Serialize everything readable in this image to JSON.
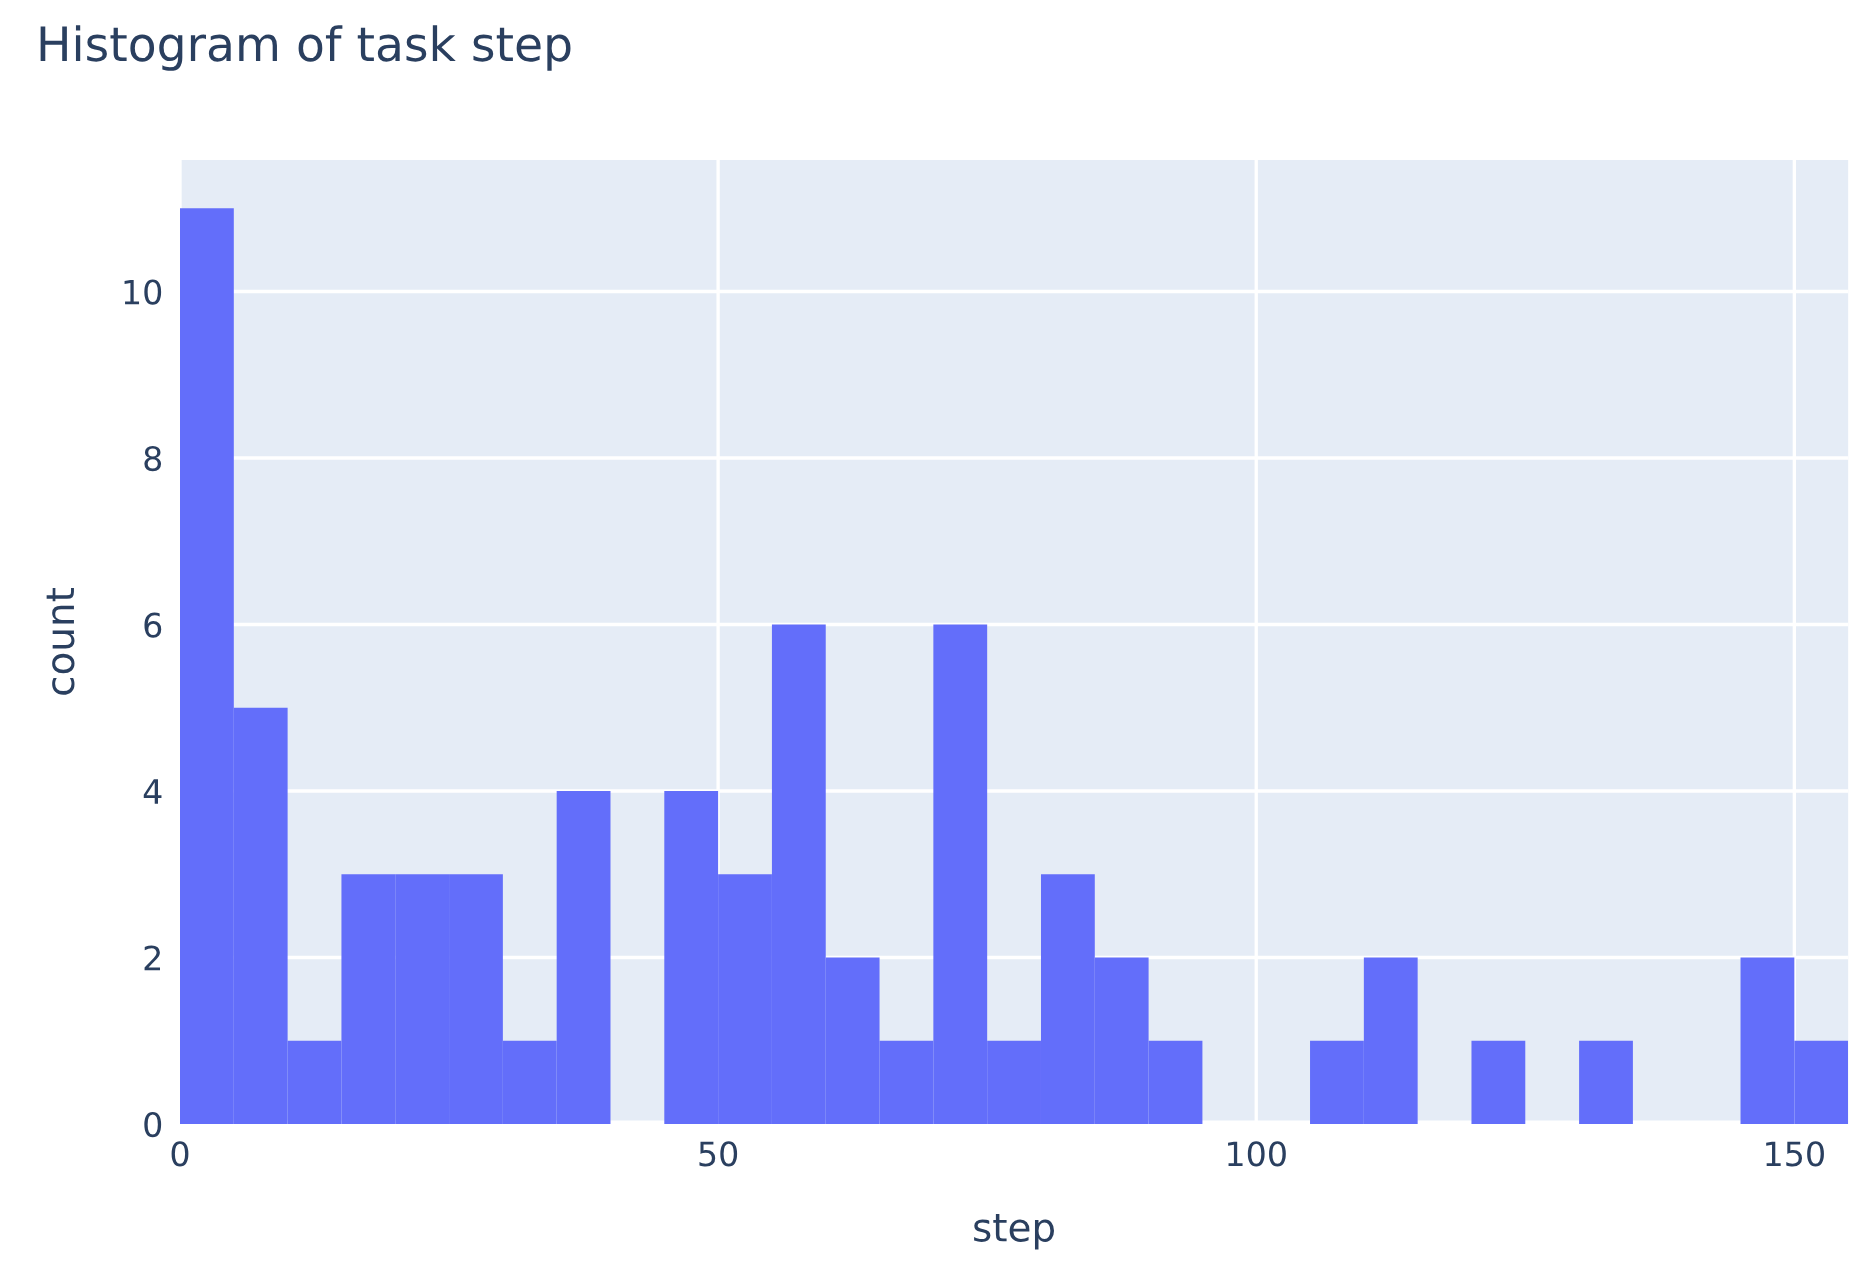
{
  "chart_data": {
    "type": "histogram",
    "title": "Histogram of task step",
    "xlabel": "step",
    "ylabel": "count",
    "bins": [
      0,
      5,
      10,
      15,
      20,
      25,
      30,
      35,
      40,
      45,
      50,
      55,
      60,
      65,
      70,
      75,
      80,
      85,
      90,
      95,
      100,
      105,
      110,
      115,
      120,
      125,
      130,
      135,
      140,
      145,
      150,
      155
    ],
    "values": [
      11,
      5,
      1,
      3,
      3,
      3,
      1,
      4,
      0,
      4,
      3,
      6,
      2,
      1,
      6,
      1,
      3,
      2,
      1,
      0,
      0,
      1,
      2,
      0,
      1,
      0,
      1,
      0,
      0,
      2,
      1
    ],
    "color": "#636efa",
    "xlim": [
      0,
      155
    ],
    "ylim": [
      0,
      11.58
    ],
    "xticks": [
      0,
      50,
      100,
      150
    ],
    "yticks": [
      0,
      2,
      4,
      6,
      8,
      10
    ],
    "grid": true,
    "legend": false
  }
}
